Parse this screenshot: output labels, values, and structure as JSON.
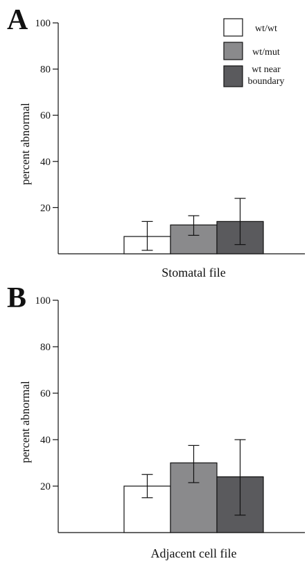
{
  "colors": {
    "wt_wt": "#ffffff",
    "wt_mut": "#8a8a8c",
    "wt_near_boundary": "#5a5a5d",
    "axis": "#111111"
  },
  "legend": {
    "items": [
      {
        "label_lines": [
          "wt/wt"
        ],
        "color_key": "wt_wt"
      },
      {
        "label_lines": [
          "wt/mut"
        ],
        "color_key": "wt_mut"
      },
      {
        "label_lines": [
          "wt near",
          "boundary"
        ],
        "color_key": "wt_near_boundary"
      }
    ]
  },
  "chart_data": [
    {
      "type": "bar",
      "panel": "A",
      "title": "",
      "xlabel": "Stomatal file",
      "ylabel": "percent abnormal",
      "ylim": [
        0,
        100
      ],
      "yticks": [
        20,
        40,
        60,
        80,
        100
      ],
      "grid": false,
      "legend_position": "top-right",
      "series": [
        {
          "name": "wt/wt",
          "value": 7.5,
          "err_low": 1.5,
          "err_high": 14
        },
        {
          "name": "wt/mut",
          "value": 12.5,
          "err_low": 8,
          "err_high": 16.5
        },
        {
          "name": "wt near boundary",
          "value": 14,
          "err_low": 4,
          "err_high": 24
        }
      ]
    },
    {
      "type": "bar",
      "panel": "B",
      "title": "",
      "xlabel": "Adjacent cell file",
      "ylabel": "percent abnormal",
      "ylim": [
        0,
        100
      ],
      "yticks": [
        20,
        40,
        60,
        80,
        100
      ],
      "grid": false,
      "series": [
        {
          "name": "wt/wt",
          "value": 20,
          "err_low": 15,
          "err_high": 25
        },
        {
          "name": "wt/mut",
          "value": 30,
          "err_low": 21.5,
          "err_high": 37.5
        },
        {
          "name": "wt near boundary",
          "value": 24,
          "err_low": 7.5,
          "err_high": 40
        }
      ]
    }
  ]
}
